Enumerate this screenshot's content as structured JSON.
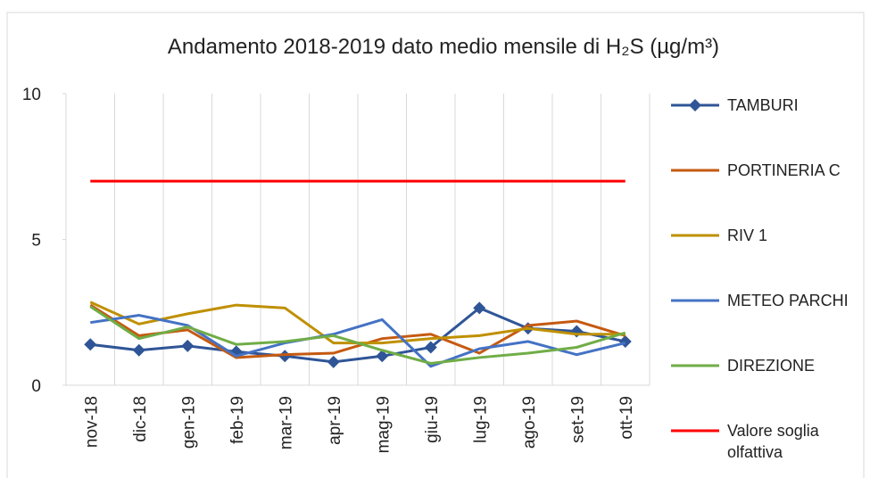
{
  "chart_data": {
    "type": "line",
    "title": "Andamento 2018-2019 dato medio mensile di H₂S (µg/m³)",
    "categories": [
      "nov-18",
      "dic-18",
      "gen-19",
      "feb-19",
      "mar-19",
      "apr-19",
      "mag-19",
      "giu-19",
      "lug-19",
      "ago-19",
      "set-19",
      "ott-19"
    ],
    "ylim": [
      0,
      10
    ],
    "yticks": [
      0,
      5,
      10
    ],
    "grid": false,
    "legend": "right",
    "series": [
      {
        "name": "TAMBURI",
        "color": "#2f5597",
        "marker": "diamond",
        "values": [
          1.4,
          1.2,
          1.35,
          1.15,
          1.0,
          0.8,
          1.0,
          1.3,
          2.65,
          1.95,
          1.85,
          1.5
        ]
      },
      {
        "name": "PORTINERIA C",
        "color": "#c55a11",
        "values": [
          2.75,
          1.7,
          1.9,
          0.95,
          1.05,
          1.1,
          1.6,
          1.75,
          1.1,
          2.05,
          2.2,
          1.7
        ]
      },
      {
        "name": "RIV 1",
        "color": "#bf9000",
        "values": [
          2.85,
          2.1,
          2.45,
          2.75,
          2.65,
          1.45,
          1.45,
          1.6,
          1.7,
          1.95,
          1.75,
          1.75
        ]
      },
      {
        "name": "METEO PARCHI",
        "color": "#4472c4",
        "values": [
          2.15,
          2.4,
          2.05,
          1.0,
          1.45,
          1.75,
          2.25,
          0.65,
          1.25,
          1.5,
          1.05,
          1.45
        ]
      },
      {
        "name": "DIREZIONE",
        "color": "#70ad47",
        "values": [
          2.7,
          1.6,
          2.0,
          1.4,
          1.5,
          1.7,
          1.2,
          0.75,
          0.95,
          1.1,
          1.3,
          1.8
        ]
      },
      {
        "name": "Valore soglia olfattiva",
        "color": "#ff0000",
        "values": [
          7,
          7,
          7,
          7,
          7,
          7,
          7,
          7,
          7,
          7,
          7,
          7
        ]
      }
    ]
  }
}
